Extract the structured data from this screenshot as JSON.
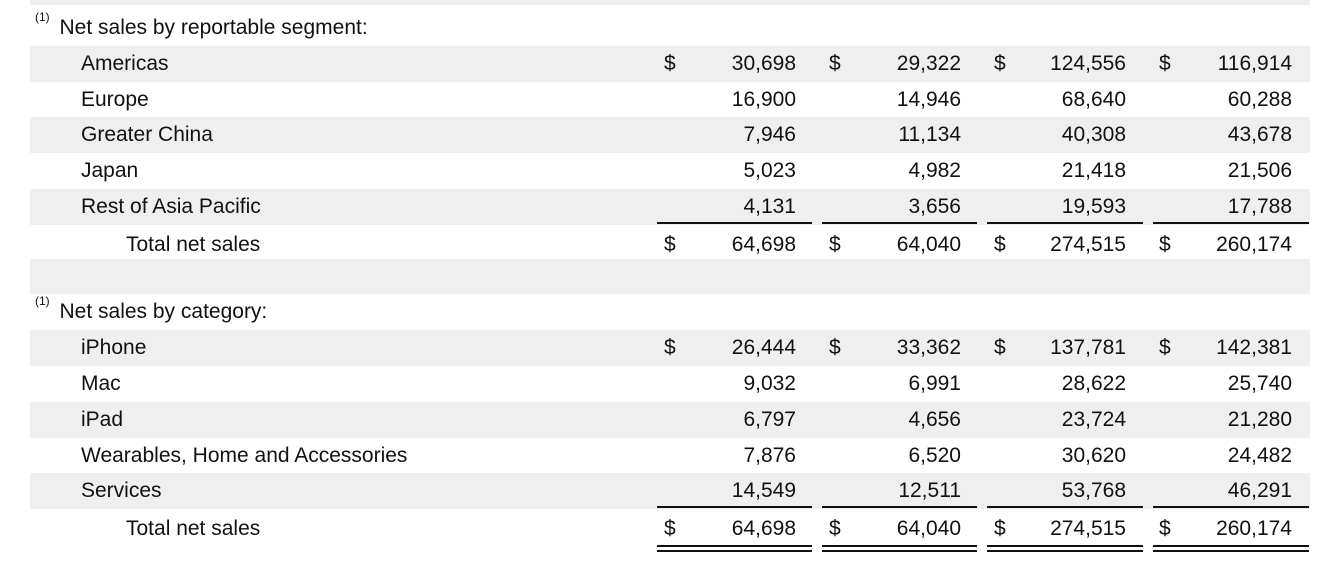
{
  "sections": [
    {
      "note": "(1)",
      "title": "Net sales by reportable segment:",
      "rows": [
        {
          "label": "Americas",
          "currency": "$",
          "values": [
            "30,698",
            "29,322",
            "124,556",
            "116,914"
          ]
        },
        {
          "label": "Europe",
          "values": [
            "16,900",
            "14,946",
            "68,640",
            "60,288"
          ]
        },
        {
          "label": "Greater China",
          "values": [
            "7,946",
            "11,134",
            "40,308",
            "43,678"
          ]
        },
        {
          "label": "Japan",
          "values": [
            "5,023",
            "4,982",
            "21,418",
            "21,506"
          ]
        },
        {
          "label": "Rest of Asia Pacific",
          "values": [
            "4,131",
            "3,656",
            "19,593",
            "17,788"
          ]
        }
      ],
      "total": {
        "label": "Total net sales",
        "currency": "$",
        "values": [
          "64,698",
          "64,040",
          "274,515",
          "260,174"
        ]
      }
    },
    {
      "note": "(1)",
      "title": "Net sales by category:",
      "rows": [
        {
          "label": "iPhone",
          "currency": "$",
          "values": [
            "26,444",
            "33,362",
            "137,781",
            "142,381"
          ]
        },
        {
          "label": "Mac",
          "values": [
            "9,032",
            "6,991",
            "28,622",
            "25,740"
          ]
        },
        {
          "label": "iPad",
          "values": [
            "6,797",
            "4,656",
            "23,724",
            "21,280"
          ]
        },
        {
          "label": "Wearables, Home and Accessories",
          "values": [
            "7,876",
            "6,520",
            "30,620",
            "24,482"
          ]
        },
        {
          "label": "Services",
          "values": [
            "14,549",
            "12,511",
            "53,768",
            "46,291"
          ]
        }
      ],
      "total": {
        "label": "Total net sales",
        "currency": "$",
        "values": [
          "64,698",
          "64,040",
          "274,515",
          "260,174"
        ]
      }
    }
  ]
}
